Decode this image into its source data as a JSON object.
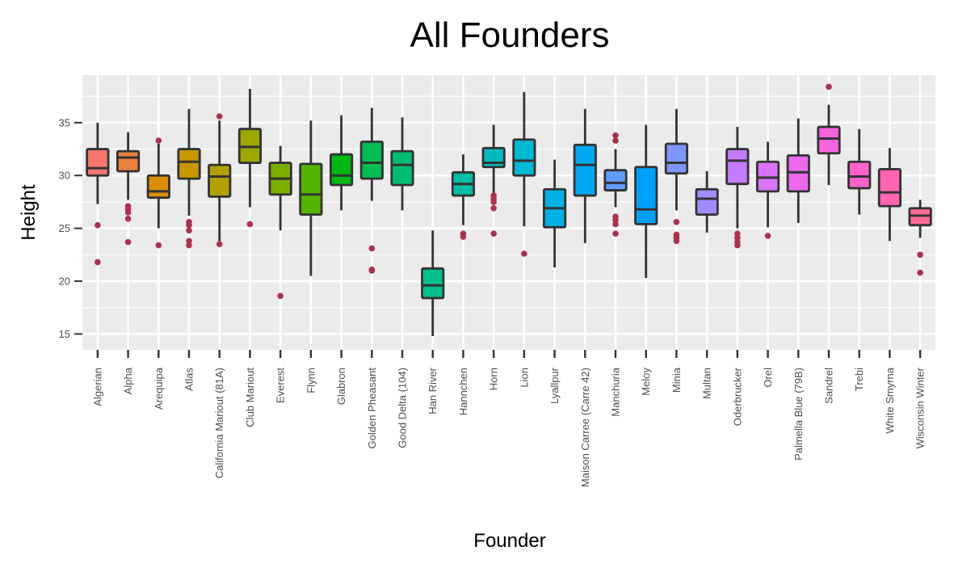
{
  "chart_data": {
    "type": "boxplot",
    "title": "All Founders",
    "xlabel": "Founder",
    "ylabel": "Height",
    "ylim": [
      13.5,
      39.5
    ],
    "yticks": [
      15,
      20,
      25,
      30,
      35
    ],
    "grid": true,
    "legend": "none",
    "categories": [
      "Algerian",
      "Alpha",
      "Arequipa",
      "Atlas",
      "California Mariout (81A)",
      "Club Mariout",
      "Everest",
      "Flynn",
      "Glabron",
      "Golden Pheasant",
      "Good Delta (104)",
      "Han River",
      "Hannchen",
      "Horn",
      "Lion",
      "Lyallpur",
      "Maison Carree (Carre 42)",
      "Manchuria",
      "Meloy",
      "Minia",
      "Multan",
      "Oderbrucker",
      "Orel",
      "Palmella Blue (79B)",
      "Sandrel",
      "Trebi",
      "White Smyrna",
      "Wisconsin Winter"
    ],
    "colors": [
      "#F8766D",
      "#EC823C",
      "#DD8D00",
      "#CA9700",
      "#B3A000",
      "#9AA800",
      "#7CAE00",
      "#54B400",
      "#00B813",
      "#00BC51",
      "#00BE71",
      "#00BF8D",
      "#00BEA6",
      "#00BBBD",
      "#00B8D2",
      "#00B1E3",
      "#00A8F1",
      "#619CFF",
      "#00A1FC",
      "#7F96FF",
      "#A38AFF",
      "#C37CFF",
      "#DA72FB",
      "#EC69EF",
      "#F863DF",
      "#FF62CB",
      "#FF65B1",
      "#FF6B96"
    ],
    "boxes": [
      {
        "min": 27.3,
        "q1": 30.0,
        "median": 30.7,
        "q3": 32.5,
        "max": 35.0,
        "outliers": [
          25.3,
          21.8
        ]
      },
      {
        "min": 27.7,
        "q1": 30.4,
        "median": 31.7,
        "q3": 32.3,
        "max": 34.1,
        "outliers": [
          27.1,
          26.8,
          26.5,
          25.9,
          23.7
        ]
      },
      {
        "min": 25.0,
        "q1": 27.9,
        "median": 28.5,
        "q3": 30.0,
        "max": 33.0,
        "outliers": [
          33.3,
          23.4
        ]
      },
      {
        "min": 26.2,
        "q1": 29.7,
        "median": 31.3,
        "q3": 32.5,
        "max": 36.3,
        "outliers": [
          25.6,
          25.3,
          24.8,
          23.8,
          23.4
        ]
      },
      {
        "min": 23.8,
        "q1": 28.0,
        "median": 29.9,
        "q3": 31.0,
        "max": 35.2,
        "outliers": [
          35.6,
          23.5
        ]
      },
      {
        "min": 27.0,
        "q1": 31.2,
        "median": 32.7,
        "q3": 34.4,
        "max": 38.2,
        "outliers": [
          25.4
        ]
      },
      {
        "min": 24.8,
        "q1": 28.2,
        "median": 29.7,
        "q3": 31.2,
        "max": 32.8,
        "outliers": [
          18.6
        ]
      },
      {
        "min": 20.5,
        "q1": 26.3,
        "median": 28.2,
        "q3": 31.1,
        "max": 35.2,
        "outliers": []
      },
      {
        "min": 26.7,
        "q1": 29.1,
        "median": 30.0,
        "q3": 32.0,
        "max": 35.7,
        "outliers": []
      },
      {
        "min": 27.6,
        "q1": 29.7,
        "median": 31.2,
        "q3": 33.2,
        "max": 36.4,
        "outliers": [
          23.1,
          21.1,
          21.0
        ]
      },
      {
        "min": 26.7,
        "q1": 29.1,
        "median": 31.0,
        "q3": 32.3,
        "max": 35.5,
        "outliers": []
      },
      {
        "min": 14.8,
        "q1": 18.4,
        "median": 19.6,
        "q3": 21.2,
        "max": 24.8,
        "outliers": []
      },
      {
        "min": 25.3,
        "q1": 28.1,
        "median": 29.2,
        "q3": 30.3,
        "max": 32.0,
        "outliers": [
          24.5,
          24.2
        ]
      },
      {
        "min": 28.2,
        "q1": 30.8,
        "median": 31.2,
        "q3": 32.6,
        "max": 34.8,
        "outliers": [
          28.1,
          27.8,
          27.5,
          26.9,
          24.5
        ]
      },
      {
        "min": 25.2,
        "q1": 30.0,
        "median": 31.4,
        "q3": 33.4,
        "max": 37.9,
        "outliers": [
          22.6
        ]
      },
      {
        "min": 21.3,
        "q1": 25.1,
        "median": 26.9,
        "q3": 28.7,
        "max": 31.5,
        "outliers": []
      },
      {
        "min": 23.6,
        "q1": 28.1,
        "median": 31.0,
        "q3": 32.9,
        "max": 36.3,
        "outliers": []
      },
      {
        "min": 27.0,
        "q1": 28.6,
        "median": 29.3,
        "q3": 30.5,
        "max": 32.5,
        "outliers": [
          33.8,
          33.3,
          26.1,
          25.8,
          25.4,
          24.5
        ]
      },
      {
        "min": 20.3,
        "q1": 25.4,
        "median": 26.8,
        "q3": 30.8,
        "max": 34.8,
        "outliers": []
      },
      {
        "min": 26.7,
        "q1": 30.2,
        "median": 31.2,
        "q3": 33.0,
        "max": 36.3,
        "outliers": [
          25.6,
          24.4,
          24.1,
          23.8
        ]
      },
      {
        "min": 24.6,
        "q1": 26.3,
        "median": 27.8,
        "q3": 28.7,
        "max": 30.4,
        "outliers": []
      },
      {
        "min": 25.0,
        "q1": 29.2,
        "median": 31.4,
        "q3": 32.5,
        "max": 34.6,
        "outliers": [
          24.5,
          24.1,
          23.7,
          23.4
        ]
      },
      {
        "min": 25.1,
        "q1": 28.5,
        "median": 29.8,
        "q3": 31.3,
        "max": 33.2,
        "outliers": [
          24.3
        ]
      },
      {
        "min": 25.5,
        "q1": 28.5,
        "median": 30.3,
        "q3": 31.9,
        "max": 35.4,
        "outliers": []
      },
      {
        "min": 29.1,
        "q1": 32.1,
        "median": 33.5,
        "q3": 34.6,
        "max": 36.7,
        "outliers": [
          38.4
        ]
      },
      {
        "min": 26.3,
        "q1": 28.8,
        "median": 29.9,
        "q3": 31.3,
        "max": 34.4,
        "outliers": []
      },
      {
        "min": 23.8,
        "q1": 27.1,
        "median": 28.4,
        "q3": 30.6,
        "max": 32.6,
        "outliers": []
      },
      {
        "min": 24.1,
        "q1": 25.3,
        "median": 26.2,
        "q3": 26.9,
        "max": 27.7,
        "outliers": [
          22.5,
          20.8
        ]
      }
    ]
  },
  "style": {
    "panel_background": "#EBEBEB",
    "grid_color": "#FFFFFF",
    "box_outline": "#333333",
    "outlier_color": "#A9334F"
  }
}
